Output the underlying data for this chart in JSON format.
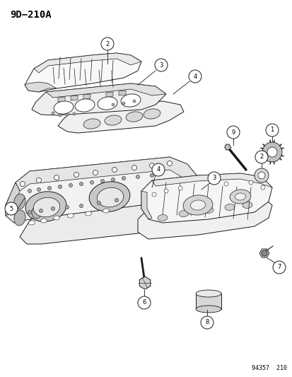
{
  "title": "9D−210A",
  "footer": "94357  210",
  "background_color": "#ffffff",
  "line_color": "#1a1a1a",
  "fig_width": 4.14,
  "fig_height": 5.33,
  "dpi": 100
}
